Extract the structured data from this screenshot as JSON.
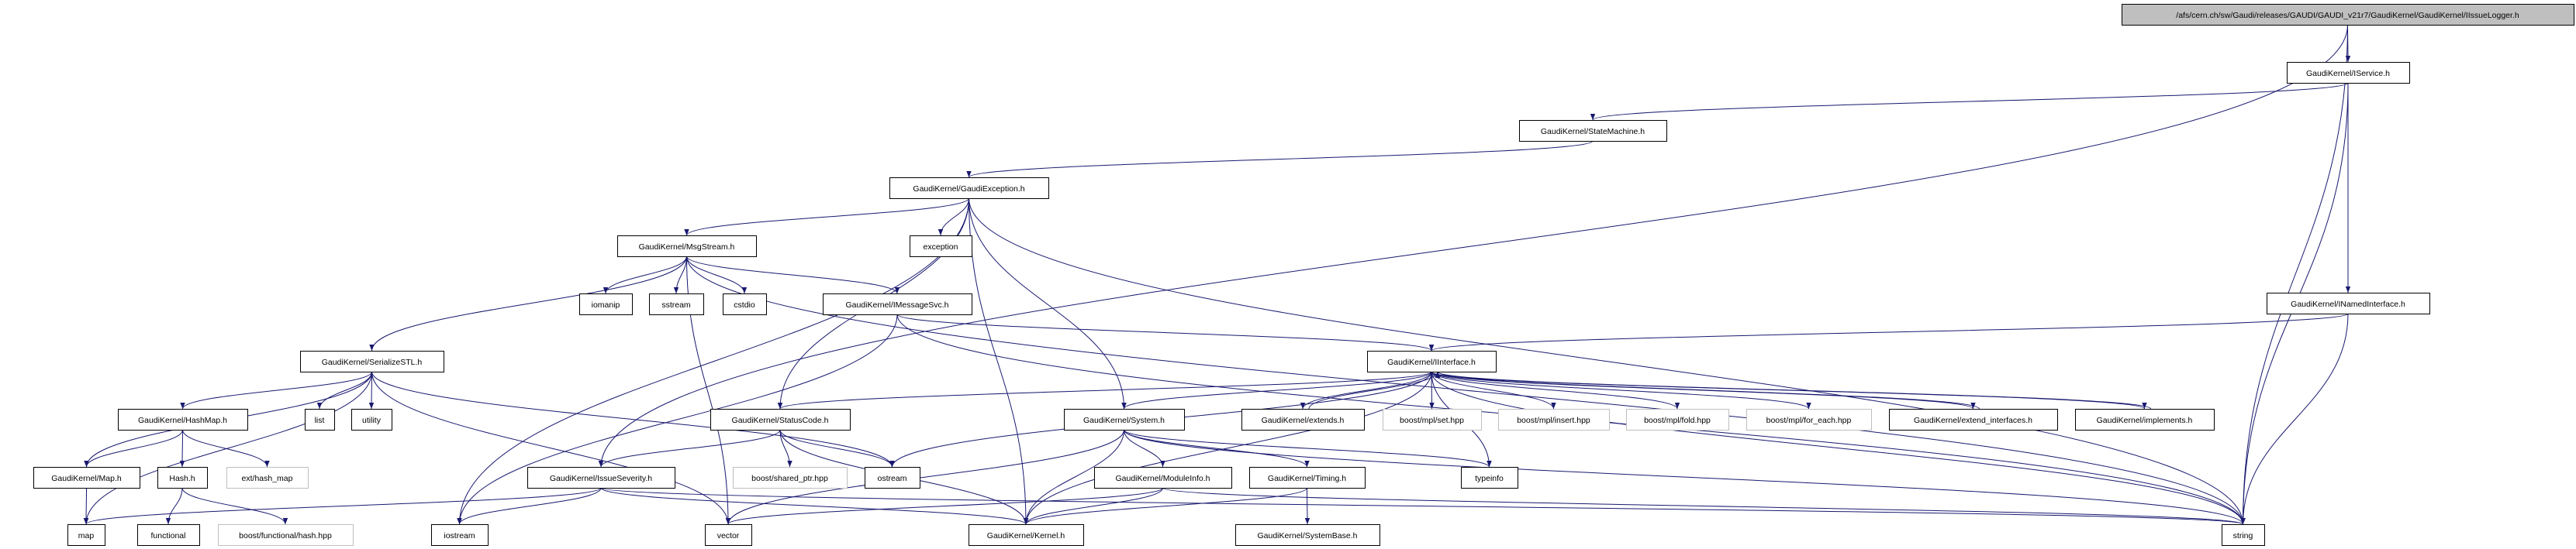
{
  "graph": {
    "colors": {
      "edge": "#191970",
      "root_fill": "#bfbfbf",
      "external_border": "#bfbfbf",
      "node_border": "#000000"
    },
    "nodes": [
      {
        "id": "root",
        "label": "/afs/cern.ch/sw/Gaudi/releases/GAUDI/GAUDI_v21r7/GaudiKernel/GaudiKernel/IIssueLogger.h",
        "kind": "root"
      },
      {
        "id": "IService",
        "label": "GaudiKernel/IService.h",
        "kind": "normal"
      },
      {
        "id": "StateMachine",
        "label": "GaudiKernel/StateMachine.h",
        "kind": "normal"
      },
      {
        "id": "GaudiException",
        "label": "GaudiKernel/GaudiException.h",
        "kind": "normal"
      },
      {
        "id": "exception",
        "label": "exception",
        "kind": "normal"
      },
      {
        "id": "MsgStream",
        "label": "GaudiKernel/MsgStream.h",
        "kind": "normal"
      },
      {
        "id": "iomanip",
        "label": "iomanip",
        "kind": "normal"
      },
      {
        "id": "sstream",
        "label": "sstream",
        "kind": "normal"
      },
      {
        "id": "cstdio",
        "label": "cstdio",
        "kind": "normal"
      },
      {
        "id": "IMessageSvc",
        "label": "GaudiKernel/IMessageSvc.h",
        "kind": "normal"
      },
      {
        "id": "INamedInterface",
        "label": "GaudiKernel/INamedInterface.h",
        "kind": "normal"
      },
      {
        "id": "SerializeSTL",
        "label": "GaudiKernel/SerializeSTL.h",
        "kind": "normal"
      },
      {
        "id": "IInterface",
        "label": "GaudiKernel/IInterface.h",
        "kind": "normal"
      },
      {
        "id": "HashMap",
        "label": "GaudiKernel/HashMap.h",
        "kind": "normal"
      },
      {
        "id": "list",
        "label": "list",
        "kind": "normal"
      },
      {
        "id": "utility",
        "label": "utility",
        "kind": "normal"
      },
      {
        "id": "StatusCode",
        "label": "GaudiKernel/StatusCode.h",
        "kind": "normal"
      },
      {
        "id": "System",
        "label": "GaudiKernel/System.h",
        "kind": "normal"
      },
      {
        "id": "extends",
        "label": "GaudiKernel/extends.h",
        "kind": "normal"
      },
      {
        "id": "mplset",
        "label": "boost/mpl/set.hpp",
        "kind": "external"
      },
      {
        "id": "mplinsert",
        "label": "boost/mpl/insert.hpp",
        "kind": "external"
      },
      {
        "id": "mplfold",
        "label": "boost/mpl/fold.hpp",
        "kind": "external"
      },
      {
        "id": "mplforeach",
        "label": "boost/mpl/for_each.hpp",
        "kind": "external"
      },
      {
        "id": "extend_interfaces",
        "label": "GaudiKernel/extend_interfaces.h",
        "kind": "normal"
      },
      {
        "id": "implements",
        "label": "GaudiKernel/implements.h",
        "kind": "normal"
      },
      {
        "id": "MapH",
        "label": "GaudiKernel/Map.h",
        "kind": "normal"
      },
      {
        "id": "HashH",
        "label": "Hash.h",
        "kind": "normal"
      },
      {
        "id": "ext_hash_map",
        "label": "ext/hash_map",
        "kind": "external"
      },
      {
        "id": "IssueSeverity",
        "label": "GaudiKernel/IssueSeverity.h",
        "kind": "normal"
      },
      {
        "id": "shared_ptr",
        "label": "boost/shared_ptr.hpp",
        "kind": "external"
      },
      {
        "id": "ostream",
        "label": "ostream",
        "kind": "normal"
      },
      {
        "id": "ModuleInfo",
        "label": "GaudiKernel/ModuleInfo.h",
        "kind": "normal"
      },
      {
        "id": "Timing",
        "label": "GaudiKernel/Timing.h",
        "kind": "normal"
      },
      {
        "id": "typeinfo",
        "label": "typeinfo",
        "kind": "normal"
      },
      {
        "id": "map",
        "label": "map",
        "kind": "normal"
      },
      {
        "id": "functional",
        "label": "functional",
        "kind": "normal"
      },
      {
        "id": "fhash",
        "label": "boost/functional/hash.hpp",
        "kind": "external"
      },
      {
        "id": "iostream",
        "label": "iostream",
        "kind": "normal"
      },
      {
        "id": "vector",
        "label": "vector",
        "kind": "normal"
      },
      {
        "id": "Kernel",
        "label": "GaudiKernel/Kernel.h",
        "kind": "normal"
      },
      {
        "id": "SystemBase",
        "label": "GaudiKernel/SystemBase.h",
        "kind": "normal"
      },
      {
        "id": "string",
        "label": "string",
        "kind": "normal"
      }
    ],
    "edges": [
      [
        "root",
        "IService"
      ],
      [
        "root",
        "IssueSeverity"
      ],
      [
        "root",
        "string"
      ],
      [
        "IService",
        "StateMachine"
      ],
      [
        "IService",
        "INamedInterface"
      ],
      [
        "IService",
        "string"
      ],
      [
        "StateMachine",
        "GaudiException"
      ],
      [
        "GaudiException",
        "MsgStream"
      ],
      [
        "GaudiException",
        "exception"
      ],
      [
        "GaudiException",
        "StatusCode"
      ],
      [
        "GaudiException",
        "System"
      ],
      [
        "GaudiException",
        "Kernel"
      ],
      [
        "GaudiException",
        "string"
      ],
      [
        "GaudiException",
        "iostream"
      ],
      [
        "MsgStream",
        "SerializeSTL"
      ],
      [
        "MsgStream",
        "iomanip"
      ],
      [
        "MsgStream",
        "sstream"
      ],
      [
        "MsgStream",
        "cstdio"
      ],
      [
        "MsgStream",
        "IMessageSvc"
      ],
      [
        "MsgStream",
        "string"
      ],
      [
        "MsgStream",
        "vector"
      ],
      [
        "IMessageSvc",
        "IInterface"
      ],
      [
        "IMessageSvc",
        "iostream"
      ],
      [
        "IMessageSvc",
        "string"
      ],
      [
        "INamedInterface",
        "IInterface"
      ],
      [
        "INamedInterface",
        "string"
      ],
      [
        "SerializeSTL",
        "map"
      ],
      [
        "SerializeSTL",
        "MapH"
      ],
      [
        "SerializeSTL",
        "HashMap"
      ],
      [
        "SerializeSTL",
        "list"
      ],
      [
        "SerializeSTL",
        "utility"
      ],
      [
        "SerializeSTL",
        "vector"
      ],
      [
        "SerializeSTL",
        "ostream"
      ],
      [
        "HashMap",
        "MapH"
      ],
      [
        "HashMap",
        "HashH"
      ],
      [
        "HashMap",
        "ext_hash_map"
      ],
      [
        "MapH",
        "map"
      ],
      [
        "HashH",
        "functional"
      ],
      [
        "HashH",
        "fhash"
      ],
      [
        "StatusCode",
        "IssueSeverity"
      ],
      [
        "StatusCode",
        "shared_ptr"
      ],
      [
        "StatusCode",
        "ostream"
      ],
      [
        "StatusCode",
        "Kernel"
      ],
      [
        "IssueSeverity",
        "map"
      ],
      [
        "IssueSeverity",
        "iostream"
      ],
      [
        "IssueSeverity",
        "Kernel"
      ],
      [
        "IssueSeverity",
        "string"
      ],
      [
        "IInterface",
        "StatusCode"
      ],
      [
        "IInterface",
        "System"
      ],
      [
        "IInterface",
        "extends"
      ],
      [
        "IInterface",
        "mplset"
      ],
      [
        "IInterface",
        "mplinsert"
      ],
      [
        "IInterface",
        "mplfold"
      ],
      [
        "IInterface",
        "mplforeach"
      ],
      [
        "IInterface",
        "extend_interfaces"
      ],
      [
        "IInterface",
        "implements"
      ],
      [
        "IInterface",
        "ostream"
      ],
      [
        "IInterface",
        "Kernel"
      ],
      [
        "IInterface",
        "typeinfo"
      ],
      [
        "IInterface",
        "string"
      ],
      [
        "extends",
        "IInterface"
      ],
      [
        "extend_interfaces",
        "IInterface"
      ],
      [
        "implements",
        "IInterface"
      ],
      [
        "System",
        "ModuleInfo"
      ],
      [
        "System",
        "Timing"
      ],
      [
        "System",
        "Kernel"
      ],
      [
        "System",
        "typeinfo"
      ],
      [
        "System",
        "string"
      ],
      [
        "System",
        "vector"
      ],
      [
        "ModuleInfo",
        "Kernel"
      ],
      [
        "ModuleInfo",
        "string"
      ],
      [
        "ModuleInfo",
        "vector"
      ],
      [
        "Timing",
        "SystemBase"
      ],
      [
        "Timing",
        "Kernel"
      ]
    ]
  }
}
